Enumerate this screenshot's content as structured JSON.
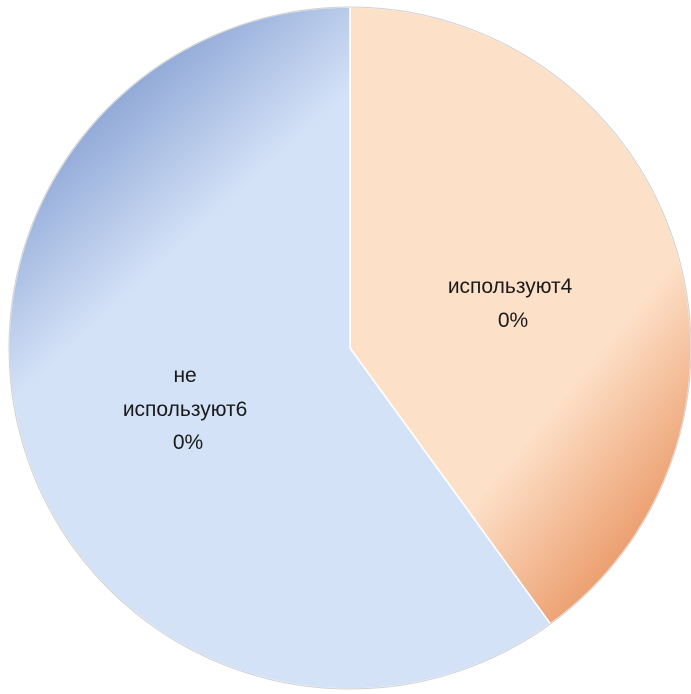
{
  "chart_data": {
    "type": "pie",
    "title": "",
    "slices": [
      {
        "label_lines": [
          "используют4",
          "0%"
        ],
        "value": 40,
        "color_light": "#fde0c8",
        "color_dark": "#e27a3c"
      },
      {
        "label_lines": [
          "не",
          "используют6",
          "0%"
        ],
        "value": 60,
        "color_light": "#d4e2f7",
        "color_dark": "#5d7dbf"
      }
    ],
    "start_angle_deg": 0,
    "direction": "clockwise",
    "legend": "none",
    "border_color": "#d0d0d0"
  }
}
